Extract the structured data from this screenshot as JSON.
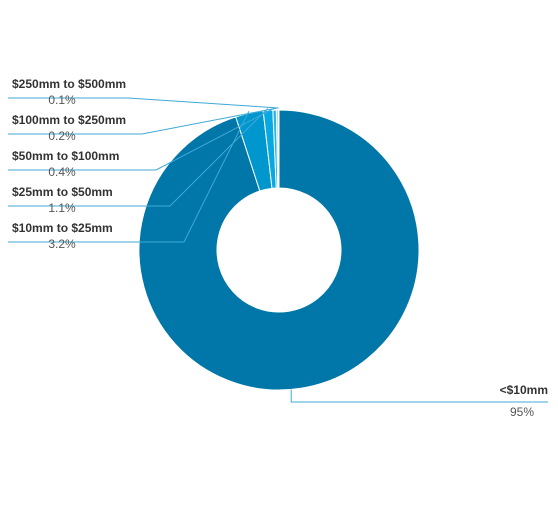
{
  "chart_data": {
    "type": "pie",
    "donut": true,
    "title": "",
    "slices": [
      {
        "label": "<$10mm",
        "value": 95,
        "value_label": "95%",
        "color": "#0077A8"
      },
      {
        "label": "$10mm to $25mm",
        "value": 3.2,
        "value_label": "3.2%",
        "color": "#0096CE"
      },
      {
        "label": "$25mm to $50mm",
        "value": 1.1,
        "value_label": "1.1%",
        "color": "#0AA8E0"
      },
      {
        "label": "$50mm to $100mm",
        "value": 0.4,
        "value_label": "0.4%",
        "color": "#2BB5E6"
      },
      {
        "label": "$100mm to $250mm",
        "value": 0.2,
        "value_label": "0.2%",
        "color": "#5CC6EC"
      },
      {
        "label": "$250mm to $500mm",
        "value": 0.1,
        "value_label": "0.1%",
        "color": "#8FD6F2"
      }
    ],
    "leader_line_color": "#3FA9D6"
  }
}
